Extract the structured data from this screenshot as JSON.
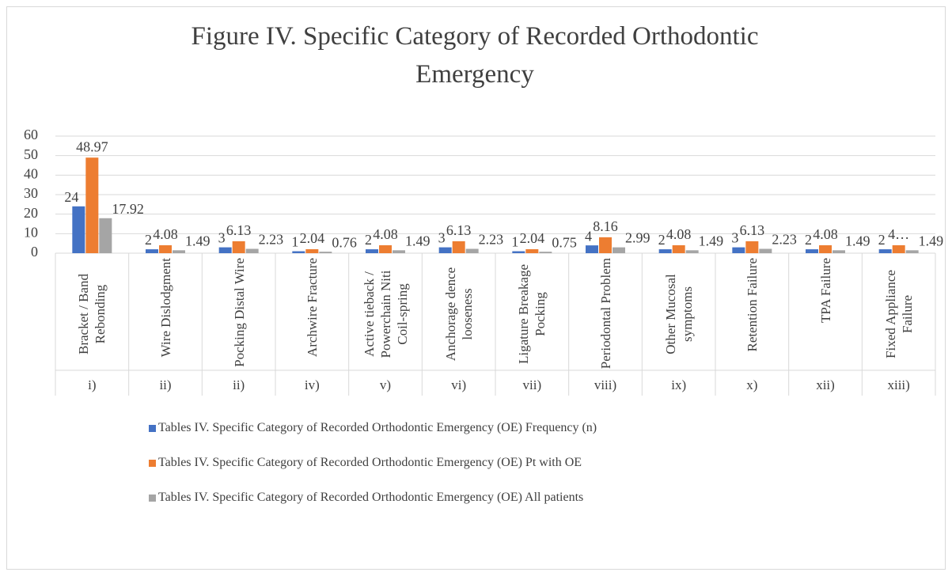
{
  "chart_data": {
    "type": "bar",
    "title": "Figure IV. Specific Category of Recorded Orthodontic Emergency",
    "categories": [
      "Bracket / Band Rebonding",
      "Wire Dislodgment",
      "Pocking Distal Wire",
      "Archwire Fracture",
      "Active tieback / Powerchain Niti Coil-spring",
      "Anchorage dence looseness",
      "Ligature Breakage Pocking",
      "Periodontal Problem",
      "Other Mucosal symptoms",
      "Retention Failure",
      "TPA Failure",
      "Fixed Appliance Failure"
    ],
    "groups": [
      "i)",
      "ii)",
      "ii)",
      "iv)",
      "v)",
      "vi)",
      "vii)",
      "viii)",
      "ix)",
      "x)",
      "xii)",
      "xiii)"
    ],
    "series": [
      {
        "name": "Tables IV. Specific Category of Recorded Orthodontic Emergency (OE) Frequency (n)",
        "color": "#4472c4",
        "values": [
          24,
          2,
          3,
          1,
          2,
          3,
          1,
          4,
          2,
          3,
          2,
          2
        ]
      },
      {
        "name": "Tables IV. Specific Category of Recorded Orthodontic Emergency (OE) Pt with OE",
        "color": "#ed7d31",
        "values": [
          48.97,
          4.08,
          6.13,
          2.04,
          4.08,
          6.13,
          2.04,
          8.16,
          4.08,
          6.13,
          4.08,
          4.08
        ],
        "value_labels": [
          "48.97",
          "4.08",
          "6.13",
          "2.04",
          "4.08",
          "6.13",
          "2.04",
          "8.16",
          "4.08",
          "6.13",
          "4.08",
          "4…"
        ]
      },
      {
        "name": "Tables IV. Specific Category of Recorded Orthodontic Emergency (OE) All patients",
        "color": "#a5a5a5",
        "values": [
          17.92,
          1.49,
          2.23,
          0.76,
          1.49,
          2.23,
          0.75,
          2.99,
          1.49,
          2.23,
          1.49,
          1.49
        ]
      }
    ],
    "ylim": [
      0,
      60
    ],
    "yticks": [
      0,
      10,
      20,
      30,
      40,
      50,
      60
    ],
    "grid": true,
    "legend": "bottom"
  }
}
